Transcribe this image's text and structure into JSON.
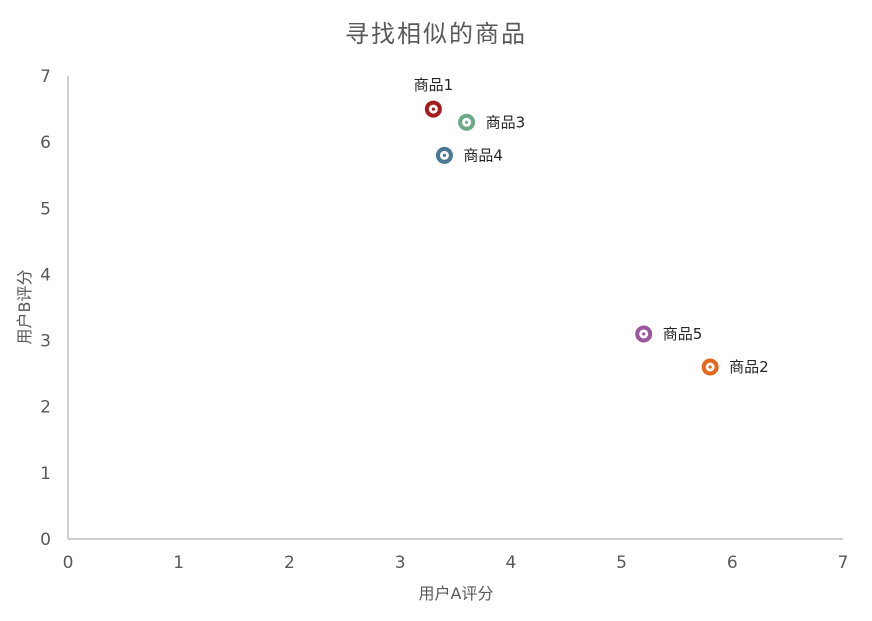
{
  "chart_data": {
    "type": "scatter",
    "title": "寻找相似的商品",
    "xlabel": "用户A评分",
    "ylabel": "用户B评分",
    "xlim": [
      0,
      7
    ],
    "ylim": [
      0,
      7
    ],
    "xticks": [
      "0",
      "1",
      "2",
      "3",
      "4",
      "5",
      "6",
      "7"
    ],
    "yticks": [
      "0",
      "1",
      "2",
      "3",
      "4",
      "5",
      "6",
      "7"
    ],
    "grid": false,
    "points": [
      {
        "label": "商品1",
        "x": 3.3,
        "y": 6.5,
        "color": "#a51c1c",
        "label_position": "above"
      },
      {
        "label": "商品2",
        "x": 5.8,
        "y": 2.6,
        "color": "#e8671b",
        "label_position": "right"
      },
      {
        "label": "商品3",
        "x": 3.6,
        "y": 6.3,
        "color": "#6aaa87",
        "label_position": "right"
      },
      {
        "label": "商品4",
        "x": 3.4,
        "y": 5.8,
        "color": "#4a7893",
        "label_position": "right"
      },
      {
        "label": "商品5",
        "x": 5.2,
        "y": 3.1,
        "color": "#9b579e",
        "label_position": "right"
      }
    ],
    "axis_color": "#bfbfbf",
    "tick_label_color": "#595959"
  }
}
